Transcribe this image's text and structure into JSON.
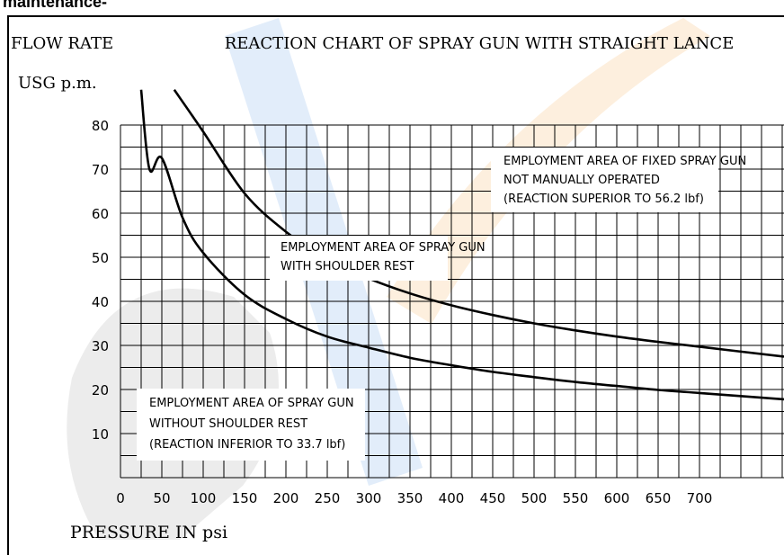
{
  "page": {
    "heading": "maintenance-"
  },
  "colors": {
    "watermark_blue": "#4c8fe0",
    "watermark_gray": "#c8c8c8",
    "watermark_orange": "#f3a64a"
  },
  "chart_data": {
    "type": "line",
    "title": "REACTION CHART OF SPRAY GUN WITH STRAIGHT LANCE",
    "ylabel_line1": "FLOW RATE",
    "ylabel_line2": "USG p.m.",
    "xlabel": "PRESSURE IN psi",
    "xlim": [
      0,
      700
    ],
    "ylim": [
      0,
      80
    ],
    "grid": true,
    "x_ticks": [
      "0",
      "50",
      "100",
      "150",
      "200",
      "250",
      "300",
      "350",
      "400",
      "450",
      "500",
      "550",
      "600",
      "650",
      "700"
    ],
    "y_ticks": [
      "10",
      "20",
      "30",
      "40",
      "50",
      "60",
      "70",
      "80"
    ],
    "series": [
      {
        "name": "",
        "x": [
          25,
          35,
          50,
          75,
          100,
          150,
          200,
          250,
          300,
          350,
          400,
          450,
          500,
          550,
          600,
          650,
          700
        ],
        "y": [
          88,
          70,
          72.5,
          59,
          51,
          41.5,
          36,
          32,
          29.5,
          27.2,
          25.5,
          24,
          22.8,
          21.7,
          20.8,
          19.9,
          19.2
        ]
      },
      {
        "name": "",
        "x": [
          65,
          100,
          150,
          200,
          250,
          300,
          350,
          400,
          450,
          500,
          550,
          600,
          650,
          700
        ],
        "y": [
          88,
          78.5,
          64.5,
          55.8,
          49.5,
          45.2,
          41.8,
          39.1,
          36.9,
          35,
          33.4,
          32,
          30.8,
          29.7
        ]
      }
    ],
    "annotations": [
      {
        "lines": [
          "EMPLOYMENT AREA OF FIXED SPRAY GUN",
          "NOT MANUALLY OPERATED",
          "(REACTION SUPERIOR TO 56.2 lbf)"
        ]
      },
      {
        "lines": [
          "EMPLOYMENT AREA OF SPRAY GUN",
          "WITH SHOULDER REST"
        ]
      },
      {
        "lines": [
          "EMPLOYMENT AREA OF SPRAY GUN",
          "WITHOUT SHOULDER REST",
          "(REACTION INFERIOR TO 33.7 lbf)"
        ]
      }
    ]
  }
}
